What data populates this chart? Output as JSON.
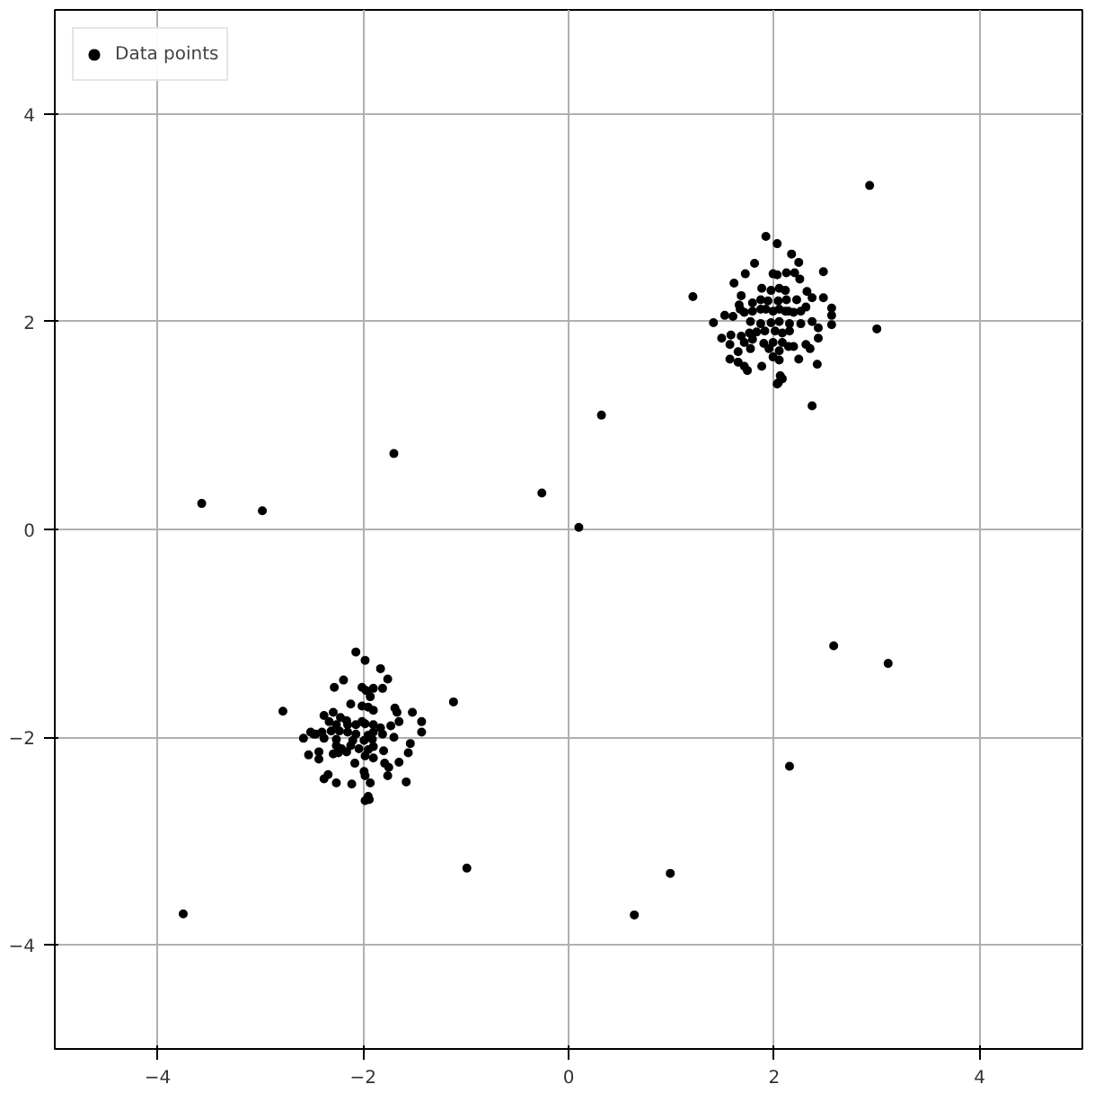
{
  "chart_data": {
    "type": "scatter",
    "xlim": [
      -5,
      5
    ],
    "ylim": [
      -5,
      5
    ],
    "xticks": [
      {
        "value": -4,
        "label": "−4"
      },
      {
        "value": -2,
        "label": "−2"
      },
      0,
      2,
      4
    ],
    "yticks": [
      {
        "value": -4,
        "label": "−4"
      },
      {
        "value": -2,
        "label": "−2"
      },
      0,
      2,
      4
    ],
    "grid": true,
    "legend": "top left",
    "marker": "circle",
    "series": [
      {
        "name": "Data points",
        "color": "#000000",
        "x": [
          2.93,
          3.0,
          1.21,
          2.37,
          0.32,
          -0.26,
          0.1,
          -1.7,
          -3.57,
          -2.98,
          2.58,
          3.11,
          2.15,
          -0.99,
          0.99,
          0.64,
          -3.75,
          -1.12,
          -2.78,
          1.92,
          2.03,
          2.17,
          2.24,
          1.81,
          1.72,
          1.61,
          1.99,
          2.03,
          2.12,
          2.2,
          2.25,
          2.48,
          1.88,
          1.97,
          2.05,
          2.11,
          2.32,
          2.37,
          2.48,
          1.68,
          1.79,
          1.87,
          1.94,
          2.04,
          2.12,
          2.22,
          2.31,
          2.56,
          2.56,
          1.52,
          1.6,
          1.66,
          1.67,
          1.71,
          1.79,
          1.87,
          1.92,
          1.99,
          2.05,
          2.11,
          2.14,
          2.19,
          2.26,
          1.41,
          1.77,
          1.87,
          1.97,
          2.05,
          2.15,
          2.26,
          2.37,
          2.43,
          2.56,
          1.49,
          1.58,
          1.68,
          1.76,
          1.83,
          1.91,
          2.01,
          2.08,
          2.15,
          1.57,
          1.71,
          1.79,
          1.9,
          1.99,
          2.08,
          2.19,
          2.31,
          2.43,
          1.65,
          1.77,
          1.95,
          2.05,
          2.14,
          2.24,
          2.35,
          1.57,
          1.65,
          1.71,
          1.74,
          1.88,
          1.99,
          2.05,
          2.06,
          2.08,
          2.04,
          2.03,
          2.42,
          -2.07,
          -1.98,
          -1.83,
          -1.76,
          -2.19,
          -2.28,
          -2.01,
          -1.97,
          -1.9,
          -1.81,
          -1.93,
          -2.12,
          -2.01,
          -1.95,
          -1.9,
          -1.69,
          -1.67,
          -1.52,
          -1.43,
          -1.43,
          -2.38,
          -2.29,
          -2.22,
          -2.16,
          -2.33,
          -2.26,
          -2.15,
          -2.07,
          -2.01,
          -1.98,
          -1.9,
          -1.83,
          -1.73,
          -1.65,
          -2.51,
          -2.46,
          -2.4,
          -2.31,
          -2.23,
          -2.15,
          -2.07,
          -1.95,
          -1.9,
          -1.81,
          -2.58,
          -2.48,
          -2.38,
          -2.26,
          -2.1,
          -1.99,
          -1.91,
          -1.7,
          -1.54,
          -2.53,
          -2.43,
          -2.26,
          -2.21,
          -2.12,
          -2.04,
          -1.95,
          -1.9,
          -1.8,
          -1.56,
          -2.43,
          -2.29,
          -2.24,
          -2.16,
          -2.08,
          -1.98,
          -1.9,
          -1.79,
          -1.75,
          -1.65,
          -2.34,
          -2.38,
          -2.26,
          -2.11,
          -1.99,
          -1.98,
          -1.93,
          -1.76,
          -1.58,
          -1.95,
          -1.94,
          -1.98
        ],
        "values": [
          3.31,
          1.93,
          2.24,
          1.19,
          1.1,
          0.35,
          0.02,
          0.73,
          0.25,
          0.18,
          -1.12,
          -1.29,
          -2.28,
          -3.26,
          -3.31,
          -3.71,
          -3.7,
          -1.66,
          -1.75,
          2.82,
          2.75,
          2.65,
          2.57,
          2.56,
          2.46,
          2.37,
          2.46,
          2.45,
          2.47,
          2.47,
          2.41,
          2.48,
          2.32,
          2.3,
          2.32,
          2.3,
          2.29,
          2.23,
          2.23,
          2.25,
          2.18,
          2.21,
          2.2,
          2.2,
          2.21,
          2.21,
          2.14,
          2.13,
          2.06,
          2.06,
          2.05,
          2.16,
          2.12,
          2.09,
          2.1,
          2.12,
          2.12,
          2.1,
          2.12,
          2.1,
          2.1,
          2.09,
          2.1,
          1.99,
          2.0,
          1.98,
          1.99,
          2.0,
          1.98,
          1.98,
          2.0,
          1.94,
          1.97,
          1.84,
          1.87,
          1.86,
          1.89,
          1.9,
          1.91,
          1.91,
          1.89,
          1.91,
          1.78,
          1.8,
          1.83,
          1.79,
          1.8,
          1.8,
          1.76,
          1.78,
          1.84,
          1.71,
          1.74,
          1.74,
          1.72,
          1.76,
          1.64,
          1.74,
          1.64,
          1.61,
          1.57,
          1.53,
          1.57,
          1.66,
          1.63,
          1.48,
          1.45,
          1.41,
          1.4,
          1.59,
          -1.18,
          -1.26,
          -1.34,
          -1.44,
          -1.45,
          -1.52,
          -1.52,
          -1.55,
          -1.53,
          -1.53,
          -1.61,
          -1.68,
          -1.7,
          -1.71,
          -1.74,
          -1.72,
          -1.76,
          -1.76,
          -1.85,
          -1.95,
          -1.79,
          -1.76,
          -1.81,
          -1.84,
          -1.85,
          -1.88,
          -1.88,
          -1.88,
          -1.85,
          -1.87,
          -1.88,
          -1.91,
          -1.89,
          -1.85,
          -1.95,
          -1.97,
          -1.95,
          -1.94,
          -1.94,
          -1.95,
          -1.97,
          -1.98,
          -1.95,
          -1.97,
          -2.01,
          -1.97,
          -2.01,
          -2.02,
          -2.03,
          -2.03,
          -2.02,
          -2.0,
          -2.06,
          -2.17,
          -2.14,
          -2.08,
          -2.11,
          -2.08,
          -2.11,
          -2.12,
          -2.09,
          -2.13,
          -2.15,
          -2.21,
          -2.16,
          -2.15,
          -2.14,
          -2.25,
          -2.18,
          -2.2,
          -2.25,
          -2.29,
          -2.24,
          -2.36,
          -2.4,
          -2.44,
          -2.45,
          -2.33,
          -2.37,
          -2.44,
          -2.37,
          -2.43,
          -2.57,
          -2.6,
          -2.61
        ]
      }
    ]
  }
}
